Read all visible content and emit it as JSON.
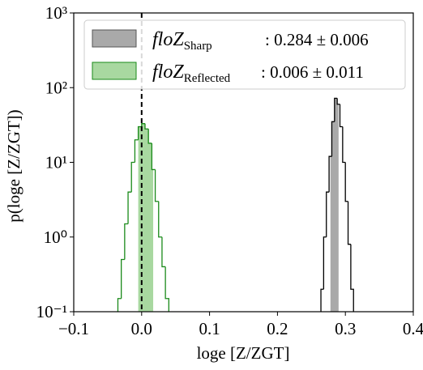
{
  "chart_data": {
    "type": "histogram",
    "log_y": true,
    "x_label": "loge [Z/ZGT]",
    "y_label": "p(loge [Z/ZGT])",
    "xlim": [
      -0.1,
      0.4
    ],
    "xticks": [
      {
        "value": -0.1,
        "label": "−0.1"
      },
      {
        "value": 0,
        "label": "0.0"
      },
      0.1,
      0.2,
      0.3,
      0.4
    ],
    "ylim": [
      0.1,
      1000
    ],
    "yticks": [
      {
        "value": 0.1,
        "label": "10⁻¹"
      },
      {
        "value": 1,
        "label": "10⁰"
      },
      {
        "value": 10,
        "label": "10¹"
      },
      {
        "value": 100,
        "label": "10²"
      },
      {
        "value": 1000,
        "label": "10³"
      }
    ],
    "vline": 0,
    "series": [
      {
        "name": "floZ",
        "name_sub": "Sharp",
        "summary": ": 0.284 ± 0.006",
        "mean": 0.284,
        "std": 0.006,
        "color": "#000000",
        "band_color": "#a9a9a9",
        "bins": [
          0.264,
          0.268,
          0.272,
          0.276,
          0.28,
          0.284,
          0.288,
          0.292,
          0.296,
          0.3,
          0.304,
          0.308,
          0.312
        ],
        "values": [
          0.2,
          1,
          4,
          12,
          35,
          72,
          60,
          30,
          10,
          3,
          0.8,
          0.2
        ]
      },
      {
        "name": "floZ",
        "name_sub": "Reflected",
        "summary": ": 0.006 ± 0.011",
        "mean": 0.006,
        "std": 0.011,
        "color": "#1a8a1a",
        "band_color": "#a8d8a0",
        "bins": [
          -0.035,
          -0.03,
          -0.025,
          -0.02,
          -0.015,
          -0.01,
          -0.005,
          0,
          0.005,
          0.01,
          0.015,
          0.02,
          0.025,
          0.03,
          0.035,
          0.04
        ],
        "values": [
          0.15,
          0.5,
          1.5,
          4,
          10,
          20,
          30,
          33,
          28,
          18,
          8,
          3,
          1,
          0.4,
          0.15
        ]
      }
    ]
  }
}
